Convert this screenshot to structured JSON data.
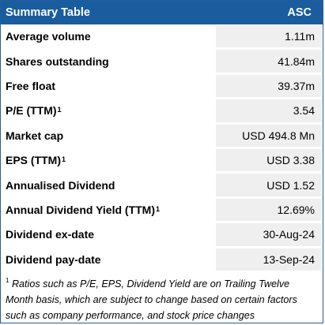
{
  "header": {
    "title": "Summary Table",
    "ticker": "ASC"
  },
  "rows": [
    {
      "label": "Average volume",
      "sup": "",
      "value": "1.11m"
    },
    {
      "label": "Shares outstanding",
      "sup": "",
      "value": "41.84m"
    },
    {
      "label": "Free float",
      "sup": "",
      "value": "39.37m"
    },
    {
      "label": "P/E (TTM)",
      "sup": "1",
      "value": "3.54"
    },
    {
      "label": "Market cap",
      "sup": "",
      "value": "USD 494.8 Mn"
    },
    {
      "label": "EPS (TTM)",
      "sup": "1",
      "value": "USD 3.38"
    },
    {
      "label": "Annualised Dividend",
      "sup": "",
      "value": "USD 1.52"
    },
    {
      "label": "Annual Dividend Yield (TTM)",
      "sup": "1",
      "value": "12.69%"
    },
    {
      "label": "Dividend ex-date",
      "sup": "",
      "value": "30-Aug-24"
    },
    {
      "label": "Dividend pay-date",
      "sup": "",
      "value": "13-Sep-24"
    }
  ],
  "footnote": {
    "sup": "1",
    "text": "Ratios such as P/E, EPS, Dividend Yield are on Trailing Twelve Month basis, which are subject to change based on certain factors such as company performance, and stock price changes"
  }
}
